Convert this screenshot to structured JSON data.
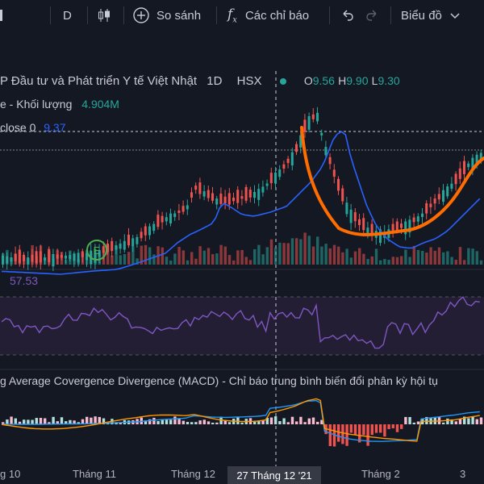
{
  "toolbar": {
    "interval": "D",
    "compare_label": "So sánh",
    "indicators_label": "Các chỉ báo",
    "chart_type_label": "Biểu đồ"
  },
  "legend": {
    "title": "P Đầu tư và Phát triển Y tế Việt Nhật",
    "interval": "1D",
    "exchange": "HSX",
    "open_label": "O",
    "open": "9.56",
    "high_label": "H",
    "high": "9.90",
    "low_label": "L",
    "low": "9.30",
    "volume_label": "e - Khối lượng",
    "volume_value": "4.904M",
    "ma_label": "close 0",
    "ma_value": "9.37",
    "rsi_value": "57.53",
    "macd_label": "g Average Covergence Divergence (MACD) - Chỉ báo trung bình biến đổi phân kỳ hội tụ"
  },
  "xaxis": {
    "labels": [
      "g 10",
      "Tháng 11",
      "Tháng 12",
      "Tháng 2",
      "3"
    ],
    "crosshair_label": "27 Tháng 12 '21"
  },
  "colors": {
    "up": "#26a69a",
    "down": "#ef5350",
    "ma": "#2962ff",
    "rsi": "#7e57c2",
    "annotation": "#ff6d00",
    "macd": "#2196f3",
    "signal": "#ff9800"
  }
}
